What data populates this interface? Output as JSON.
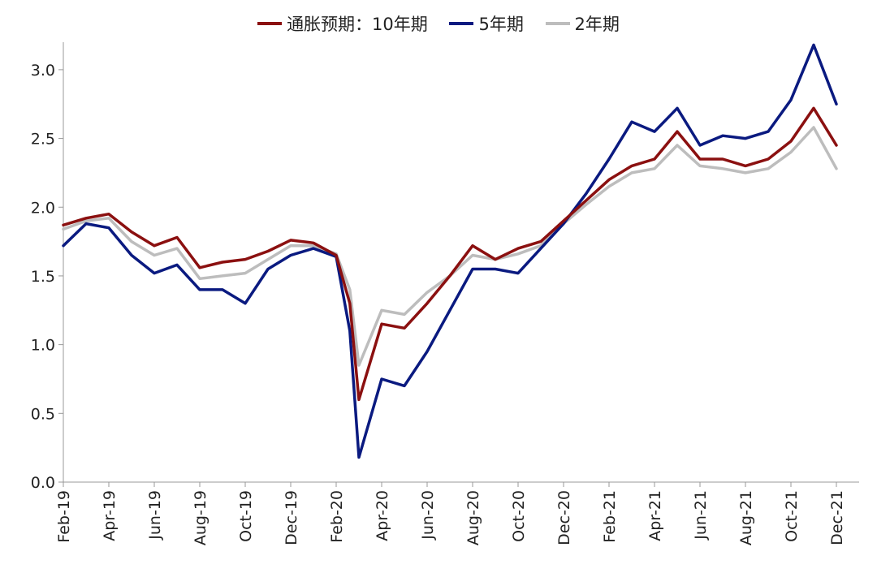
{
  "chart_data": {
    "type": "line",
    "title": "",
    "xlabel": "",
    "ylabel": "",
    "ylim": [
      0.0,
      3.2
    ],
    "yticks": [
      "0.0",
      "0.5",
      "1.0",
      "1.5",
      "2.0",
      "2.5",
      "3.0"
    ],
    "x_tick_labels": [
      "Feb-19",
      "Apr-19",
      "Jun-19",
      "Aug-19",
      "Oct-19",
      "Dec-19",
      "Feb-20",
      "Apr-20",
      "Jun-20",
      "Aug-20",
      "Oct-20",
      "Dec-20",
      "Feb-21",
      "Apr-21",
      "Jun-21",
      "Aug-21",
      "Oct-21",
      "Dec-21"
    ],
    "x": [
      "2019-02",
      "2019-03",
      "2019-04",
      "2019-05",
      "2019-06",
      "2019-07",
      "2019-08",
      "2019-09",
      "2019-10",
      "2019-11",
      "2019-12",
      "2020-01",
      "2020-02",
      "2020-03a",
      "2020-03b",
      "2020-04",
      "2020-05",
      "2020-06",
      "2020-07",
      "2020-08",
      "2020-09",
      "2020-10",
      "2020-11",
      "2020-12",
      "2021-01",
      "2021-02",
      "2021-03",
      "2021-04",
      "2021-05",
      "2021-06",
      "2021-07",
      "2021-08",
      "2021-09",
      "2021-10",
      "2021-11",
      "2021-12"
    ],
    "x_positions": [
      0,
      1,
      2,
      3,
      4,
      5,
      6,
      7,
      8,
      9,
      10,
      11,
      12,
      12.6,
      13.0,
      14,
      15,
      16,
      17,
      18,
      19,
      20,
      21,
      22,
      23,
      24,
      25,
      26,
      27,
      28,
      29,
      30,
      31,
      32,
      33,
      34
    ],
    "legend_position": "top-center",
    "series": [
      {
        "name": "通胀预期：10年期",
        "color": "#8B1010",
        "values": [
          1.87,
          1.92,
          1.95,
          1.82,
          1.72,
          1.78,
          1.56,
          1.6,
          1.62,
          1.68,
          1.76,
          1.74,
          1.65,
          1.3,
          0.6,
          1.15,
          1.12,
          1.3,
          1.5,
          1.72,
          1.62,
          1.7,
          1.75,
          1.9,
          2.05,
          2.2,
          2.3,
          2.35,
          2.55,
          2.35,
          2.35,
          2.3,
          2.35,
          2.48,
          2.72,
          2.45
        ]
      },
      {
        "name": "5年期",
        "color": "#0A1A80",
        "values": [
          1.72,
          1.88,
          1.85,
          1.65,
          1.52,
          1.58,
          1.4,
          1.4,
          1.3,
          1.55,
          1.65,
          1.7,
          1.64,
          1.1,
          0.18,
          0.75,
          0.7,
          0.95,
          1.25,
          1.55,
          1.55,
          1.52,
          1.7,
          1.88,
          2.1,
          2.35,
          2.62,
          2.55,
          2.72,
          2.45,
          2.52,
          2.5,
          2.55,
          2.78,
          3.18,
          2.75
        ]
      },
      {
        "name": "2年期",
        "color": "#BDBDBD",
        "values": [
          1.84,
          1.9,
          1.92,
          1.75,
          1.65,
          1.7,
          1.48,
          1.5,
          1.52,
          1.62,
          1.72,
          1.72,
          1.66,
          1.4,
          0.85,
          1.25,
          1.22,
          1.38,
          1.5,
          1.65,
          1.62,
          1.66,
          1.72,
          1.88,
          2.02,
          2.15,
          2.25,
          2.28,
          2.45,
          2.3,
          2.28,
          2.25,
          2.28,
          2.4,
          2.58,
          2.28
        ]
      }
    ]
  }
}
